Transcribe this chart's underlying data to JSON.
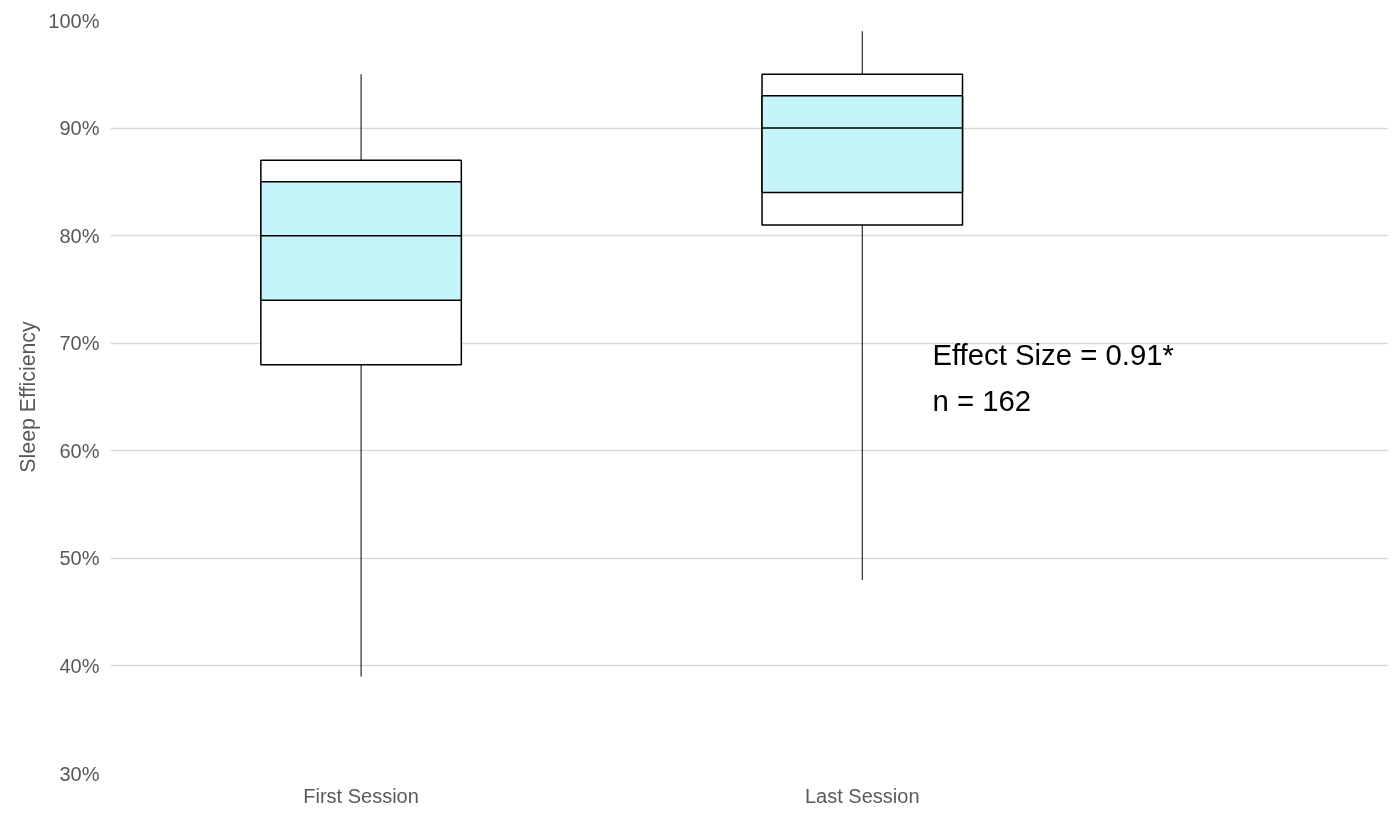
{
  "chart_data": {
    "type": "box",
    "ylabel": "Sleep Efficiency",
    "categories": [
      "First Session",
      "Last Session"
    ],
    "ylim": [
      30,
      100
    ],
    "yticks": [
      {
        "value": 30,
        "label": "30%"
      },
      {
        "value": 40,
        "label": "40%"
      },
      {
        "value": 50,
        "label": "50%"
      },
      {
        "value": 60,
        "label": "60%"
      },
      {
        "value": 70,
        "label": "70%"
      },
      {
        "value": 80,
        "label": "80%"
      },
      {
        "value": 90,
        "label": "90%"
      },
      {
        "value": 100,
        "label": "100%"
      }
    ],
    "grid": "y",
    "series": [
      {
        "color": "#ffffff",
        "boxes": [
          {
            "low": 39,
            "q1": 68,
            "median": 80,
            "q3": 87,
            "high": 95
          },
          {
            "low": 48,
            "q1": 81,
            "median": 90,
            "q3": 95,
            "high": 99
          }
        ]
      },
      {
        "type": "bar",
        "color": "#c6f4fb",
        "base": [
          74,
          84
        ],
        "values": [
          11,
          9
        ]
      }
    ],
    "annotations": [
      "Effect Size = 0.91*",
      "n = 162"
    ]
  }
}
